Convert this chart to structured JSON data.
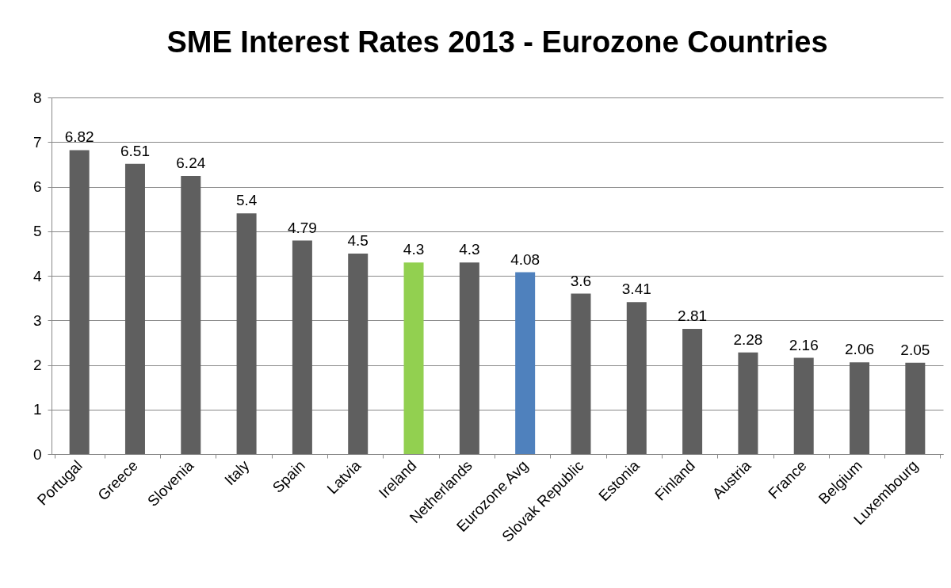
{
  "chart_data": {
    "type": "bar",
    "title": "SME Interest Rates 2013 - Eurozone Countries",
    "categories": [
      "Portugal",
      "Greece",
      "Slovenia",
      "Italy",
      "Spain",
      "Latvia",
      "Ireland",
      "Netherlands",
      "Eurozone Avg",
      "Slovak Republic",
      "Estonia",
      "Finland",
      "Austria",
      "France",
      "Belgium",
      "Luxembourg"
    ],
    "values": [
      6.82,
      6.51,
      6.24,
      5.4,
      4.79,
      4.5,
      4.3,
      4.3,
      4.08,
      3.6,
      3.41,
      2.81,
      2.28,
      2.16,
      2.06,
      2.05
    ],
    "colors": [
      "#5f5f5f",
      "#5f5f5f",
      "#5f5f5f",
      "#5f5f5f",
      "#5f5f5f",
      "#5f5f5f",
      "#92d050",
      "#5f5f5f",
      "#4f81bd",
      "#5f5f5f",
      "#5f5f5f",
      "#5f5f5f",
      "#5f5f5f",
      "#5f5f5f",
      "#5f5f5f",
      "#5f5f5f"
    ],
    "ylim": [
      0,
      8
    ],
    "yticks": [
      0,
      1,
      2,
      3,
      4,
      5,
      6,
      7,
      8
    ],
    "grid": "y",
    "data_labels": true
  }
}
